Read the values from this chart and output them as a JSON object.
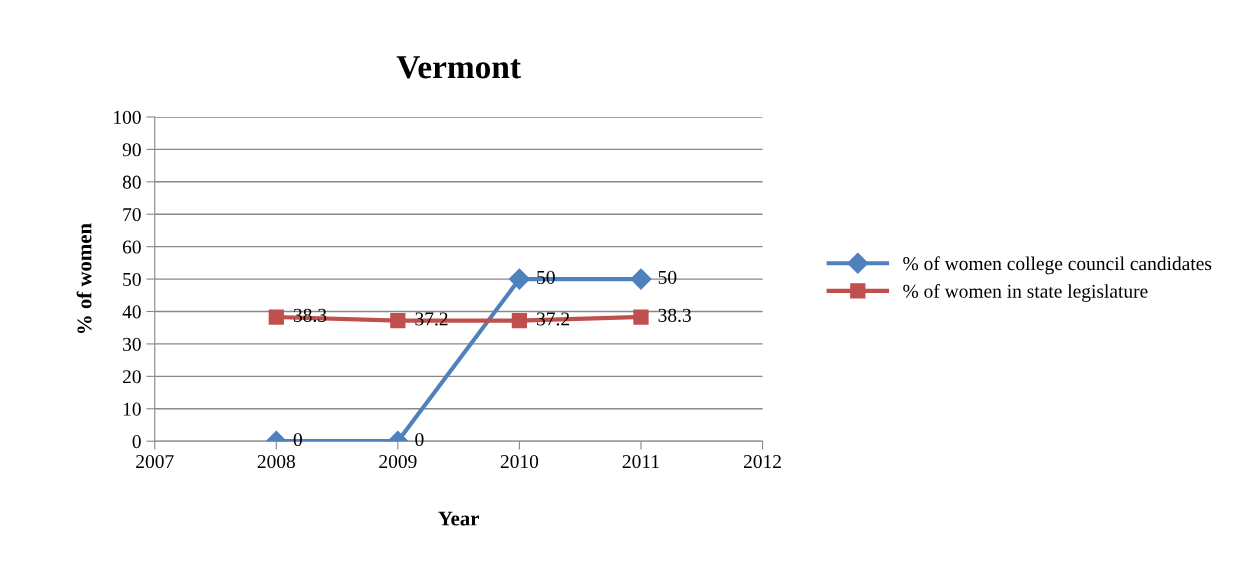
{
  "chart_data": {
    "type": "line",
    "title": "Vermont",
    "xlabel": "Year",
    "ylabel": "% of women",
    "x": [
      2008,
      2009,
      2010,
      2011
    ],
    "series": [
      {
        "name": "% of women college council candidates",
        "color": "#4f81bd",
        "values": [
          0,
          0,
          50,
          50
        ],
        "marker": "diamond"
      },
      {
        "name": "% of women in state legislature",
        "color": "#c0504d",
        "values": [
          38.3,
          37.2,
          37.2,
          38.3
        ],
        "marker": "square"
      }
    ],
    "xlim": [
      2007,
      2012
    ],
    "xticks": [
      2007,
      2008,
      2009,
      2010,
      2011,
      2012
    ],
    "ylim": [
      0,
      100
    ],
    "yticks": [
      0,
      10,
      20,
      30,
      40,
      50,
      60,
      70,
      80,
      90,
      100
    ],
    "grid": "y",
    "legend": "right",
    "data_labels": true,
    "line_style": "solid"
  }
}
